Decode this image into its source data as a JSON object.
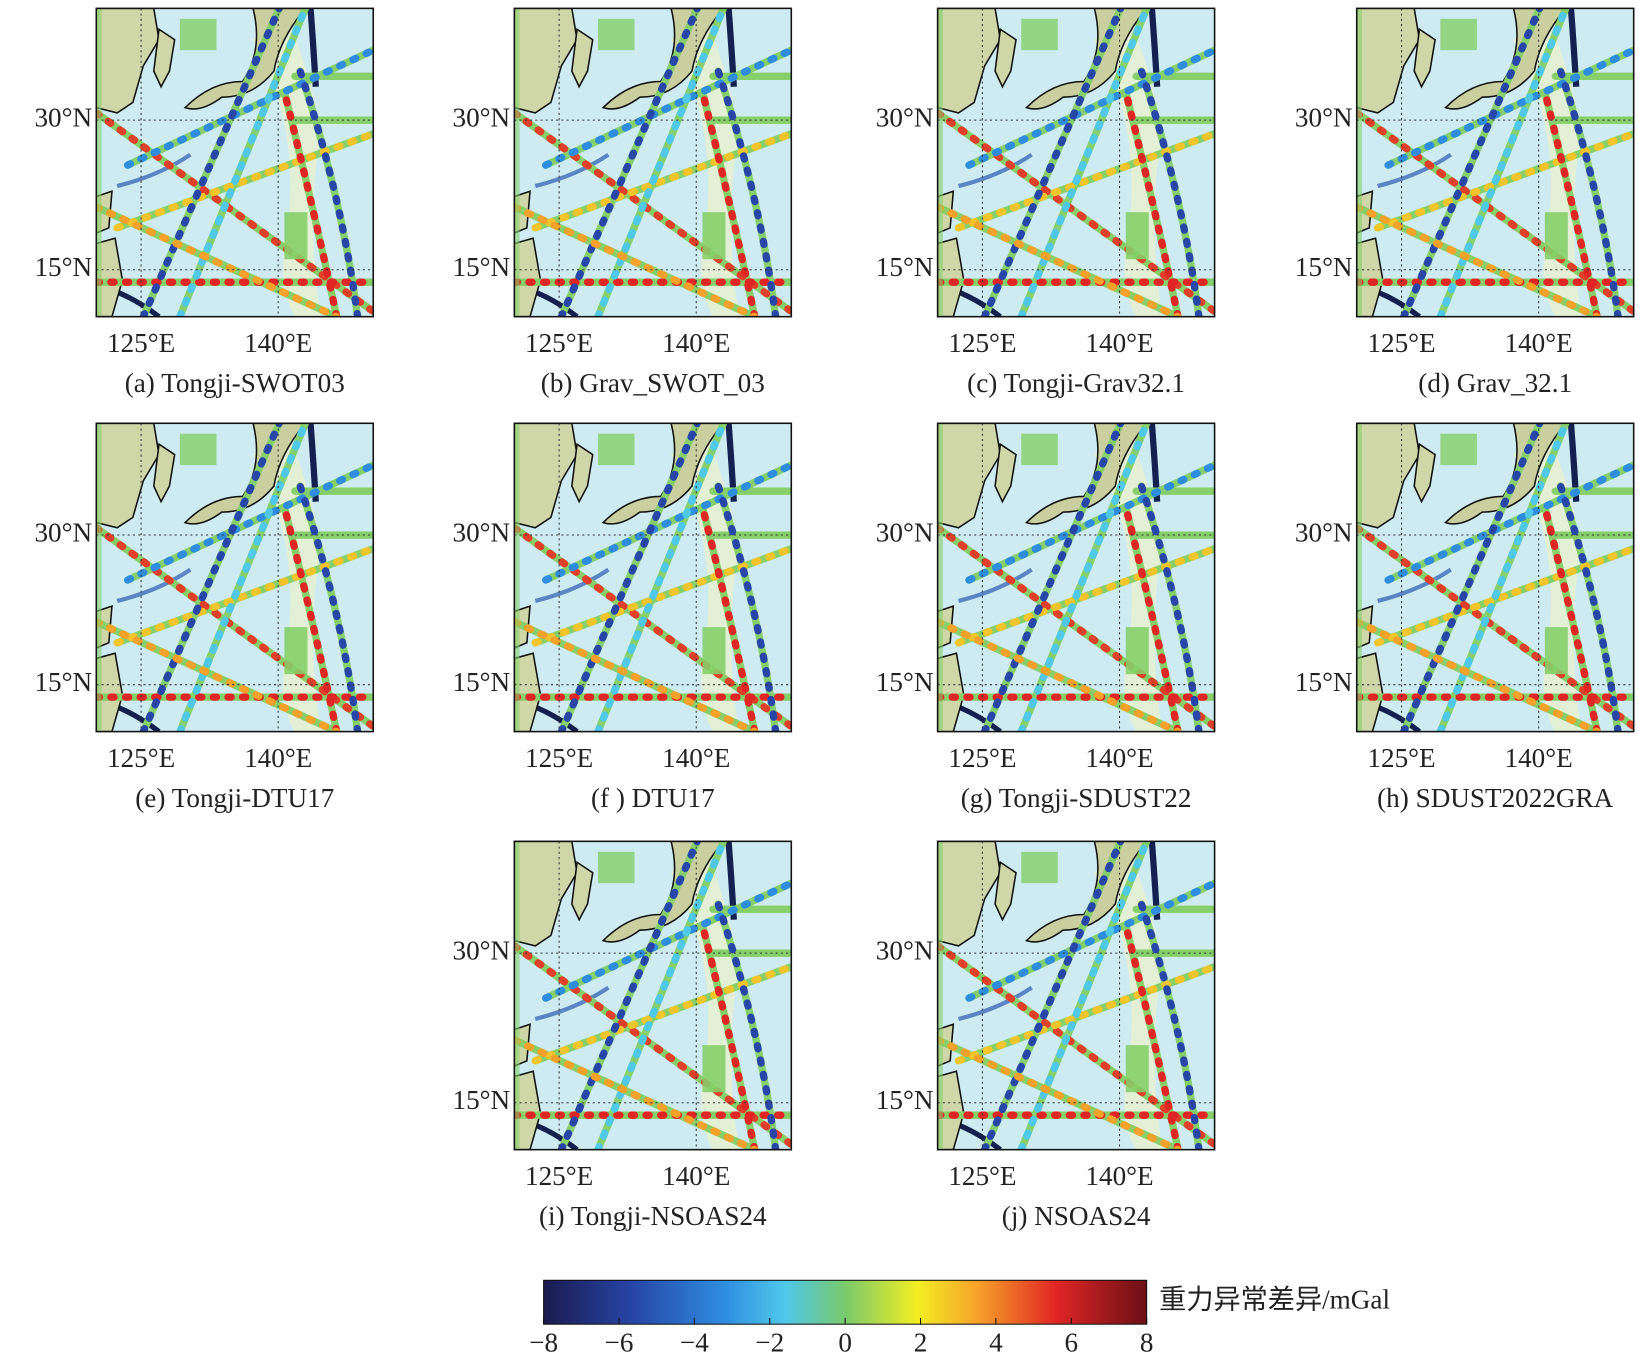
{
  "panels": [
    {
      "label": "(a) Tongji-SWOT03"
    },
    {
      "label": "(b) Grav_SWOT_03"
    },
    {
      "label": "(c) Tongji-Grav32.1"
    },
    {
      "label": "(d) Grav_32.1"
    },
    {
      "label": "(e) Tongji-DTU17"
    },
    {
      "label": "(f ) DTU17"
    },
    {
      "label": "(g) Tongji-SDUST22"
    },
    {
      "label": "(h) SDUST2022GRA"
    },
    {
      "label": "(i) Tongji-NSOAS24"
    },
    {
      "label": "(j) NSOAS24"
    }
  ],
  "lat_lim": [
    10.3,
    41.2
  ],
  "lon_lim": [
    120.1,
    150.4
  ],
  "lat_ticks": [
    {
      "value": 30,
      "label": "30°N"
    },
    {
      "value": 15,
      "label": "15°N"
    }
  ],
  "lon_ticks": [
    {
      "value": 125,
      "label": "125°E"
    },
    {
      "value": 140,
      "label": "140°E"
    }
  ],
  "colorbar": {
    "label": "重力异常差异/mGal",
    "lim": [
      -8,
      8
    ],
    "ticks": [
      {
        "value": -8,
        "label": "−8"
      },
      {
        "value": -6,
        "label": "−6"
      },
      {
        "value": -4,
        "label": "−4"
      },
      {
        "value": -2,
        "label": "−2"
      },
      0,
      2,
      4,
      6,
      8
    ]
  }
}
